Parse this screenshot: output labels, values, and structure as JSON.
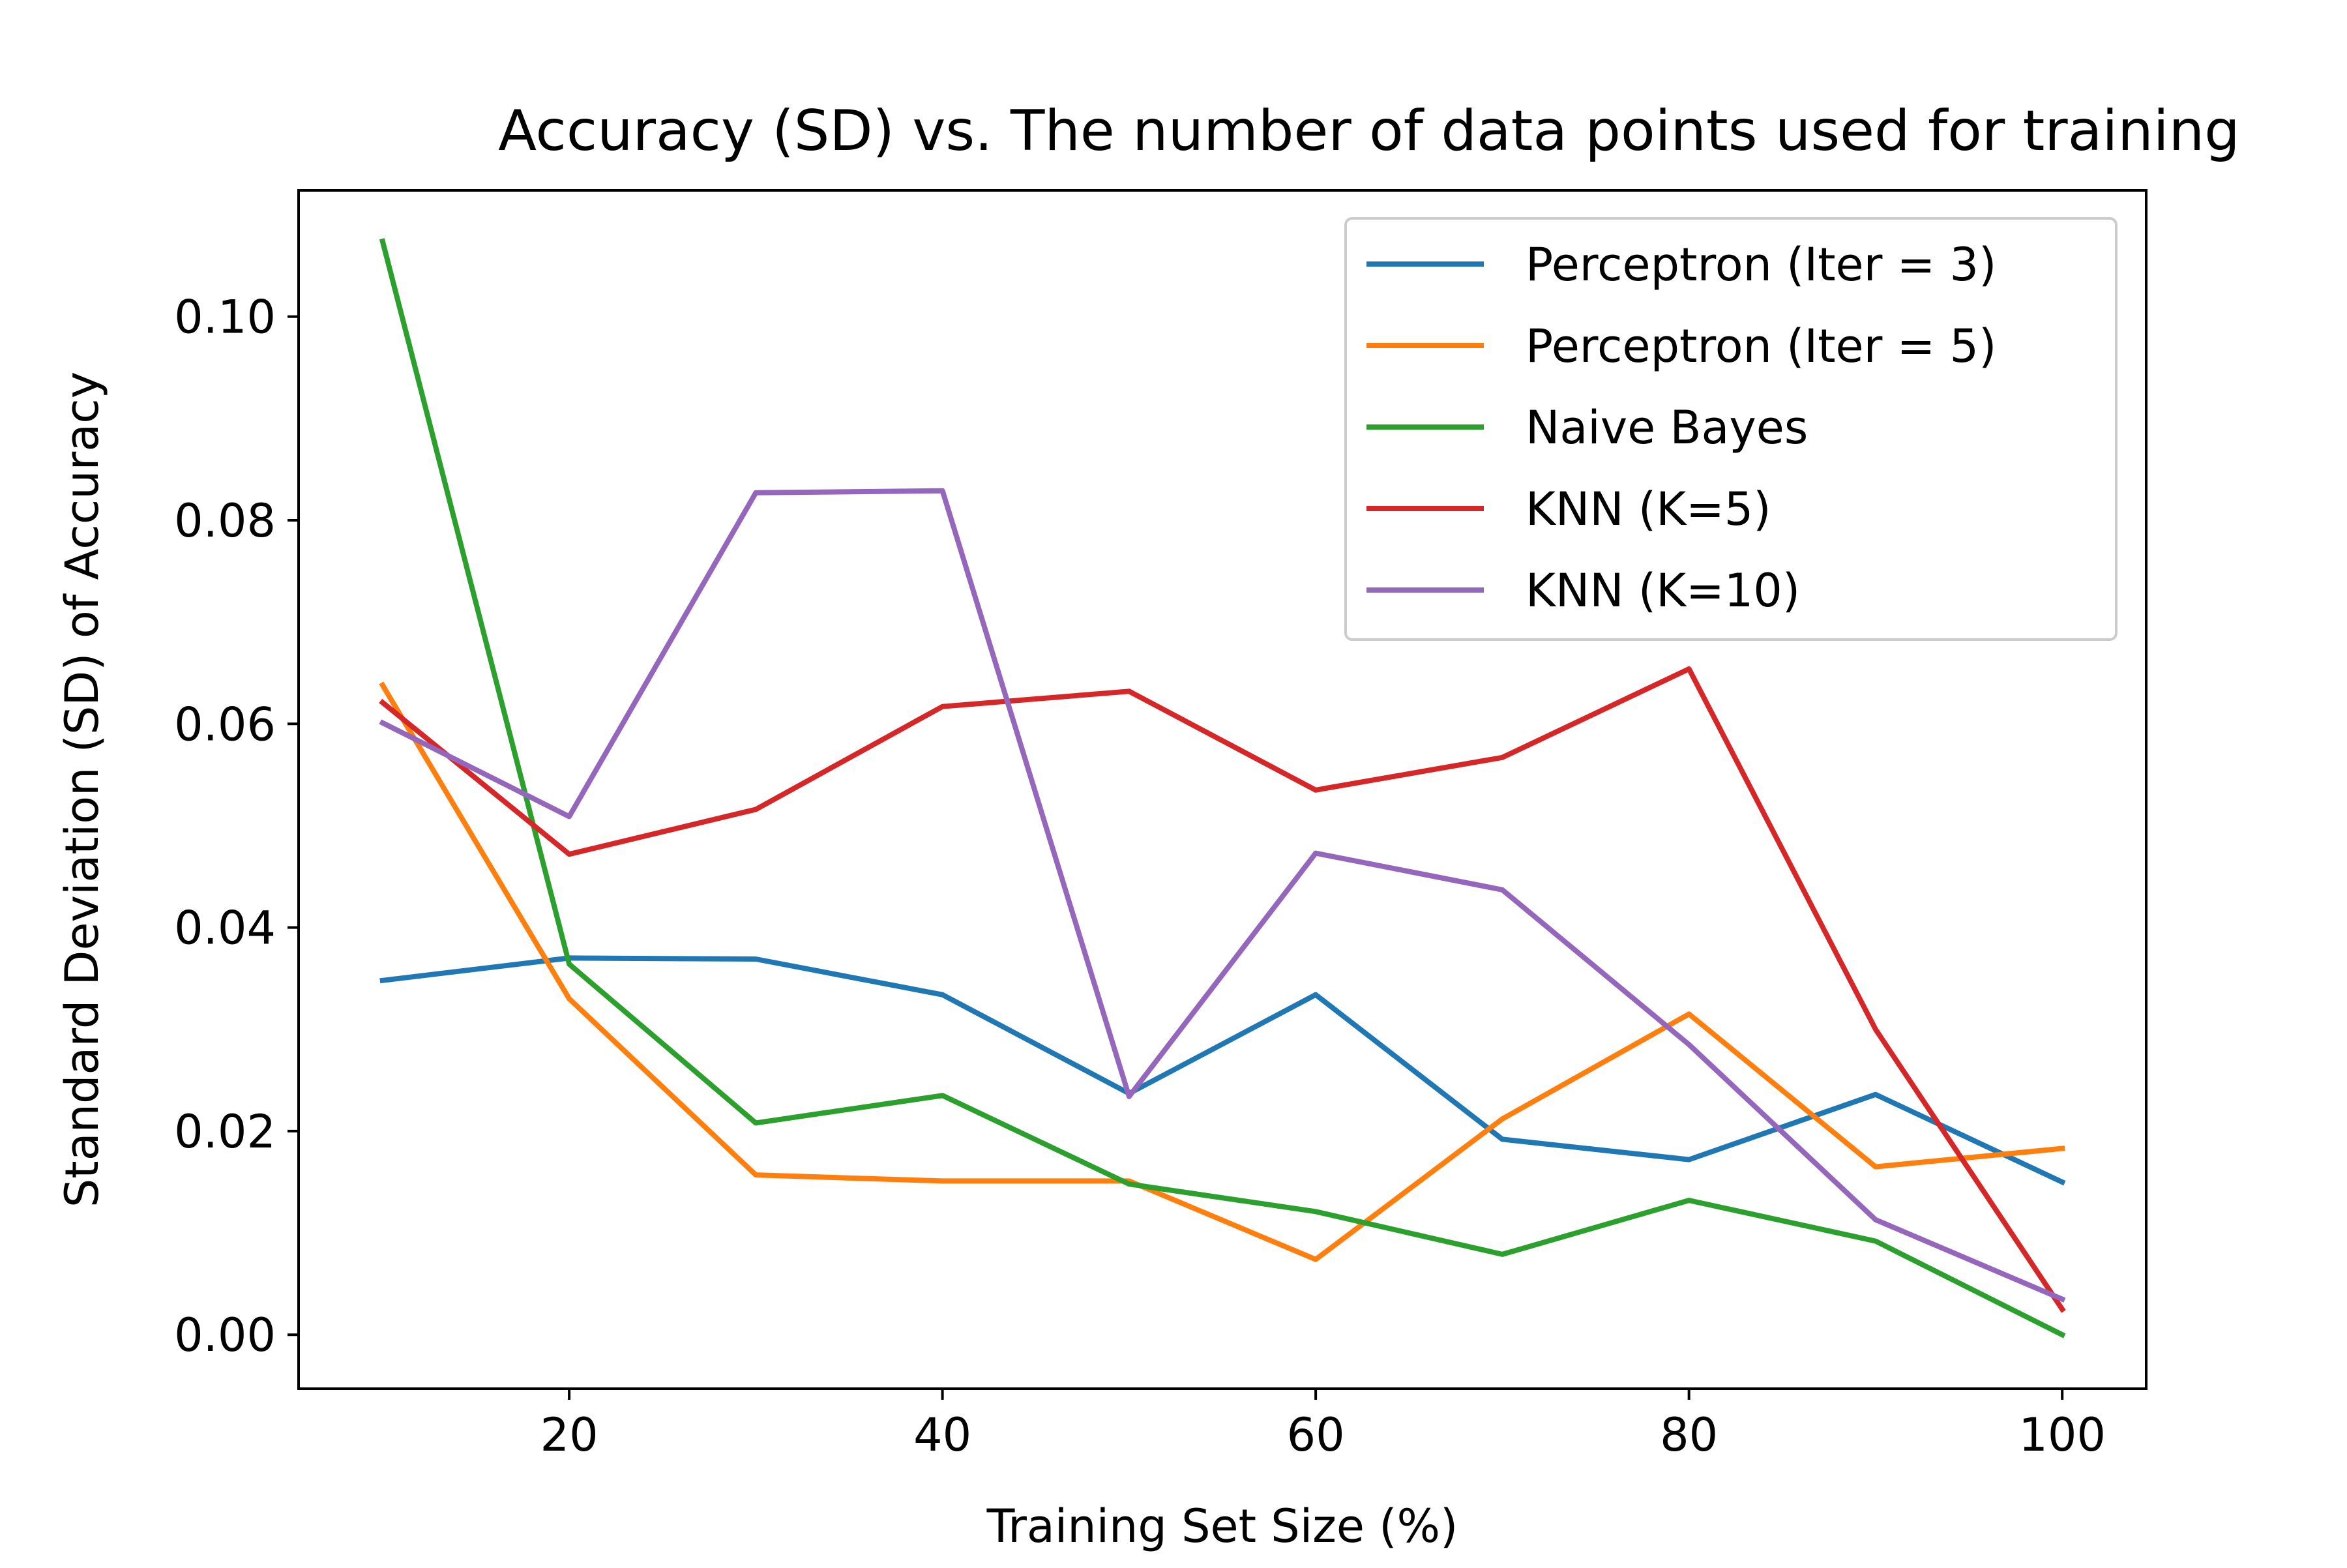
{
  "chart_data": {
    "type": "line",
    "title": "Accuracy (SD) vs. The number of data points used for training",
    "xlabel": "Training Set Size (%)",
    "ylabel": "Standard Deviation (SD) of Accuracy",
    "xlim": [
      5.5,
      104.5
    ],
    "ylim": [
      -0.0053,
      0.1124
    ],
    "grid": false,
    "legend_position": "top-right",
    "xticks": [
      {
        "value": 20,
        "label": "20"
      },
      {
        "value": 40,
        "label": "40"
      },
      {
        "value": 60,
        "label": "60"
      },
      {
        "value": 80,
        "label": "80"
      },
      {
        "value": 100,
        "label": "100"
      }
    ],
    "yticks": [
      {
        "value": 0.0,
        "label": "0.00"
      },
      {
        "value": 0.02,
        "label": "0.02"
      },
      {
        "value": 0.04,
        "label": "0.04"
      },
      {
        "value": 0.06,
        "label": "0.06"
      },
      {
        "value": 0.08,
        "label": "0.08"
      },
      {
        "value": 0.1,
        "label": "0.10"
      }
    ],
    "x": [
      10,
      20,
      30,
      40,
      50,
      60,
      70,
      80,
      90,
      100
    ],
    "series": [
      {
        "name": "Perceptron (Iter = 3)",
        "color": "#1f77b4",
        "values": [
          0.0348,
          0.037,
          0.0369,
          0.0334,
          0.0237,
          0.0334,
          0.0192,
          0.0172,
          0.0236,
          0.015
        ]
      },
      {
        "name": "Perceptron (Iter = 5)",
        "color": "#ff7f0e",
        "values": [
          0.0638,
          0.033,
          0.0157,
          0.0151,
          0.0151,
          0.0074,
          0.0212,
          0.0315,
          0.0165,
          0.0183
        ]
      },
      {
        "name": "Naive Bayes",
        "color": "#2ca02c",
        "values": [
          0.1074,
          0.0364,
          0.0208,
          0.0235,
          0.0148,
          0.0121,
          0.0079,
          0.0132,
          0.0092,
          0.0
        ]
      },
      {
        "name": "KNN (K=5)",
        "color": "#d62728",
        "values": [
          0.0621,
          0.0472,
          0.0516,
          0.0617,
          0.0632,
          0.0535,
          0.0567,
          0.0654,
          0.03,
          0.0025
        ]
      },
      {
        "name": "KNN (K=10)",
        "color": "#9467bd",
        "values": [
          0.0601,
          0.0509,
          0.0827,
          0.0829,
          0.0234,
          0.0473,
          0.0437,
          0.0285,
          0.0113,
          0.0035
        ]
      }
    ]
  }
}
